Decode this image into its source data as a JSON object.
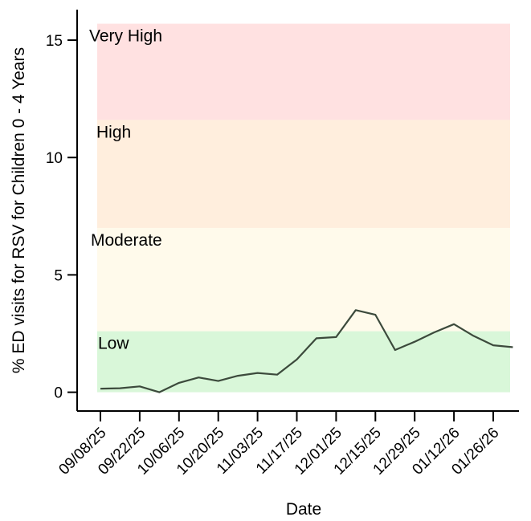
{
  "chart_data": {
    "type": "line",
    "title": "",
    "xlabel": "Date",
    "ylabel": "% ED visits for RSV for Children 0 - 4 Years",
    "ylim": [
      -0.8,
      16.3
    ],
    "yticks": [
      0,
      5,
      10,
      15
    ],
    "xtick_labels": [
      "09/08/25",
      "09/22/25",
      "10/06/25",
      "10/20/25",
      "11/03/25",
      "11/17/25",
      "12/01/25",
      "12/15/25",
      "12/29/25",
      "01/12/26",
      "01/26/26"
    ],
    "bands": [
      {
        "label": "Low",
        "from": 0,
        "to": 2.6,
        "color": "#d9f7d9"
      },
      {
        "label": "Moderate",
        "from": 2.6,
        "to": 7.0,
        "color": "#fffaeb"
      },
      {
        "label": "High",
        "from": 7.0,
        "to": 11.6,
        "color": "#ffeedd"
      },
      {
        "label": "Very High",
        "from": 11.6,
        "to": 15.7,
        "color": "#ffe1e1"
      }
    ],
    "series": [
      {
        "line_color": "#3c4a3c",
        "x": [
          "09/08/25",
          "09/15/25",
          "09/22/25",
          "09/29/25",
          "10/06/25",
          "10/13/25",
          "10/20/25",
          "10/27/25",
          "11/03/25",
          "11/10/25",
          "11/17/25",
          "11/24/25",
          "12/01/25",
          "12/08/25",
          "12/15/25",
          "12/22/25",
          "12/29/25",
          "01/05/26",
          "01/12/26",
          "01/19/26",
          "01/26/26",
          "02/02/26"
        ],
        "values": [
          0.15,
          0.17,
          0.25,
          0.0,
          0.4,
          0.63,
          0.48,
          0.7,
          0.82,
          0.75,
          1.4,
          2.3,
          2.35,
          3.5,
          3.3,
          1.8,
          2.15,
          2.55,
          2.9,
          2.4,
          2.0,
          1.92
        ]
      }
    ]
  }
}
